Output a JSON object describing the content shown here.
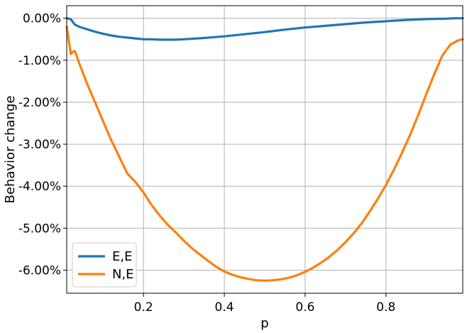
{
  "chart_data": {
    "type": "line",
    "title": "",
    "xlabel": "p",
    "ylabel": "Behavior change",
    "xlim": [
      0.01,
      0.99
    ],
    "ylim": [
      -6.55,
      0.3
    ],
    "xticks": [
      0.2,
      0.4,
      0.6,
      0.8
    ],
    "xtick_labels": [
      "0.2",
      "0.4",
      "0.6",
      "0.8"
    ],
    "yticks": [
      0,
      -1,
      -2,
      -3,
      -4,
      -5,
      -6
    ],
    "ytick_labels": [
      "0.00%",
      "-1.00%",
      "-2.00%",
      "-3.00%",
      "-4.00%",
      "-5.00%",
      "-6.00%"
    ],
    "grid": true,
    "legend_position": "lower-left",
    "series": [
      {
        "name": "E,E",
        "color": "#1f77b4",
        "x": [
          0.01,
          0.02,
          0.03,
          0.04,
          0.06,
          0.08,
          0.1,
          0.12,
          0.14,
          0.16,
          0.18,
          0.2,
          0.22,
          0.24,
          0.26,
          0.28,
          0.3,
          0.35,
          0.4,
          0.45,
          0.5,
          0.55,
          0.6,
          0.65,
          0.7,
          0.75,
          0.8,
          0.85,
          0.9,
          0.95,
          0.97,
          0.99
        ],
        "values": [
          0.0,
          -0.02,
          -0.15,
          -0.2,
          -0.26,
          -0.32,
          -0.37,
          -0.41,
          -0.44,
          -0.46,
          -0.48,
          -0.5,
          -0.5,
          -0.51,
          -0.51,
          -0.51,
          -0.5,
          -0.47,
          -0.43,
          -0.38,
          -0.33,
          -0.27,
          -0.22,
          -0.18,
          -0.14,
          -0.1,
          -0.07,
          -0.04,
          -0.02,
          -0.01,
          0.0,
          0.0
        ]
      },
      {
        "name": "N,E",
        "color": "#ff7f0e",
        "x": [
          0.01,
          0.02,
          0.025,
          0.03,
          0.035,
          0.04,
          0.05,
          0.06,
          0.08,
          0.1,
          0.12,
          0.14,
          0.16,
          0.18,
          0.2,
          0.22,
          0.24,
          0.26,
          0.28,
          0.3,
          0.32,
          0.34,
          0.36,
          0.38,
          0.4,
          0.42,
          0.44,
          0.46,
          0.48,
          0.5,
          0.52,
          0.54,
          0.56,
          0.58,
          0.6,
          0.62,
          0.64,
          0.66,
          0.68,
          0.7,
          0.72,
          0.74,
          0.76,
          0.78,
          0.8,
          0.82,
          0.84,
          0.86,
          0.88,
          0.9,
          0.92,
          0.94,
          0.96,
          0.98,
          0.99
        ],
        "values": [
          -0.2,
          -0.85,
          -0.8,
          -0.78,
          -0.9,
          -1.05,
          -1.3,
          -1.55,
          -2.0,
          -2.45,
          -2.9,
          -3.3,
          -3.7,
          -3.9,
          -4.15,
          -4.45,
          -4.7,
          -4.92,
          -5.1,
          -5.3,
          -5.48,
          -5.63,
          -5.78,
          -5.92,
          -6.03,
          -6.11,
          -6.17,
          -6.21,
          -6.24,
          -6.25,
          -6.24,
          -6.22,
          -6.18,
          -6.12,
          -6.04,
          -5.94,
          -5.82,
          -5.68,
          -5.52,
          -5.33,
          -5.12,
          -4.88,
          -4.6,
          -4.3,
          -3.97,
          -3.6,
          -3.2,
          -2.77,
          -2.3,
          -1.8,
          -1.32,
          -0.88,
          -0.62,
          -0.52,
          -0.5
        ]
      }
    ]
  }
}
